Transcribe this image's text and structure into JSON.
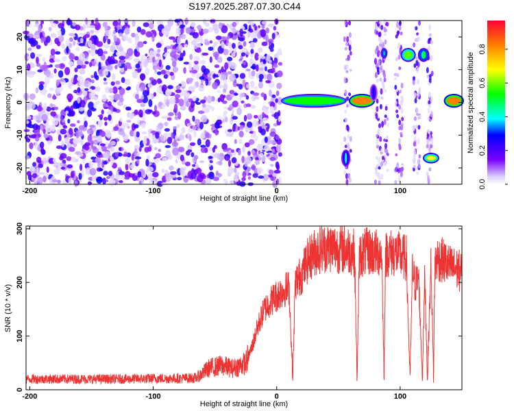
{
  "title": "S197.2025.287.07.30.C44",
  "chart_data": [
    {
      "type": "heatmap",
      "xlabel": "Height of straight line (km)",
      "ylabel": "Frequency (Hz)",
      "xlim": [
        -203,
        150
      ],
      "ylim": [
        -25,
        25
      ],
      "xticks": [
        -200,
        -100,
        0,
        100
      ],
      "xtick_labels": [
        "-200",
        "-100",
        "0",
        "100"
      ],
      "yticks": [
        -20,
        -10,
        0,
        10,
        20
      ],
      "ytick_labels": [
        "-20",
        "-10",
        "0",
        "10",
        "20"
      ],
      "colorbar": {
        "label": "Normalized spectral amplitude",
        "range": [
          0,
          0.97
        ],
        "ticks": [
          0.0,
          0.2,
          0.4,
          0.6,
          0.8
        ],
        "tick_labels": [
          "0.0",
          "0.2",
          "0.4",
          "0.6",
          "0.8"
        ]
      },
      "features": [
        {
          "x": [
            -203,
            3
          ],
          "y": [
            -25,
            25
          ],
          "kind": "noise"
        },
        {
          "x": [
            5,
            55
          ],
          "y": [
            -1,
            2
          ],
          "kind": "band",
          "level": 0.55
        },
        {
          "x": [
            60,
            78
          ],
          "y": [
            -1,
            2
          ],
          "kind": "band",
          "level": 0.85
        },
        {
          "x": [
            86,
            88
          ],
          "y": [
            14,
            16
          ],
          "kind": "blob",
          "level": 0.5
        },
        {
          "x": [
            102,
            111
          ],
          "y": [
            13,
            16
          ],
          "kind": "blob",
          "level": 0.6
        },
        {
          "x": [
            116,
            122
          ],
          "y": [
            13,
            16
          ],
          "kind": "blob",
          "level": 0.5
        },
        {
          "x": [
            120,
            130
          ],
          "y": [
            -18,
            -16
          ],
          "kind": "band",
          "level": 0.7
        },
        {
          "x": [
            54,
            58
          ],
          "y": [
            -19,
            -15
          ],
          "kind": "blob",
          "level": 0.4
        },
        {
          "x": [
            137,
            150
          ],
          "y": [
            -1,
            2
          ],
          "kind": "band",
          "level": 0.85
        },
        {
          "x": [
            77,
            80
          ],
          "y": [
            1,
            5
          ],
          "kind": "blob",
          "level": 0.3
        }
      ]
    },
    {
      "type": "line",
      "xlabel": "Height of straight line (km)",
      "ylabel": "SNR (10 * v/v)",
      "xlim": [
        -203,
        150
      ],
      "ylim": [
        0,
        305
      ],
      "xticks": [
        -200,
        -100,
        0,
        100
      ],
      "xtick_labels": [
        "-200",
        "-100",
        "0",
        "100"
      ],
      "yticks": [
        0,
        100,
        200,
        300
      ],
      "ytick_labels": [
        "0",
        "100",
        "200",
        "300"
      ],
      "series": [
        {
          "color": "#ee3333",
          "x": [
            -203,
            -180,
            -160,
            -140,
            -120,
            -100,
            -80,
            -65,
            -55,
            -45,
            -35,
            -25,
            -20,
            -15,
            -10,
            -5,
            0,
            5,
            10,
            13,
            15,
            17,
            20,
            25,
            30,
            35,
            40,
            45,
            50,
            55,
            60,
            63,
            65,
            67,
            70,
            75,
            80,
            85,
            87,
            88,
            90,
            95,
            100,
            105,
            108,
            110,
            112,
            115,
            118,
            120,
            122,
            125,
            127,
            128,
            130,
            135,
            140,
            145,
            150
          ],
          "y": [
            20,
            20,
            20,
            20,
            20,
            21,
            21,
            22,
            40,
            45,
            40,
            50,
            80,
            120,
            150,
            165,
            175,
            185,
            190,
            20,
            200,
            205,
            215,
            240,
            255,
            262,
            265,
            265,
            263,
            262,
            260,
            255,
            20,
            250,
            255,
            258,
            255,
            255,
            20,
            250,
            255,
            255,
            250,
            245,
            20,
            225,
            195,
            210,
            20,
            215,
            20,
            240,
            20,
            230,
            245,
            240,
            230,
            225,
            220
          ]
        }
      ]
    }
  ]
}
